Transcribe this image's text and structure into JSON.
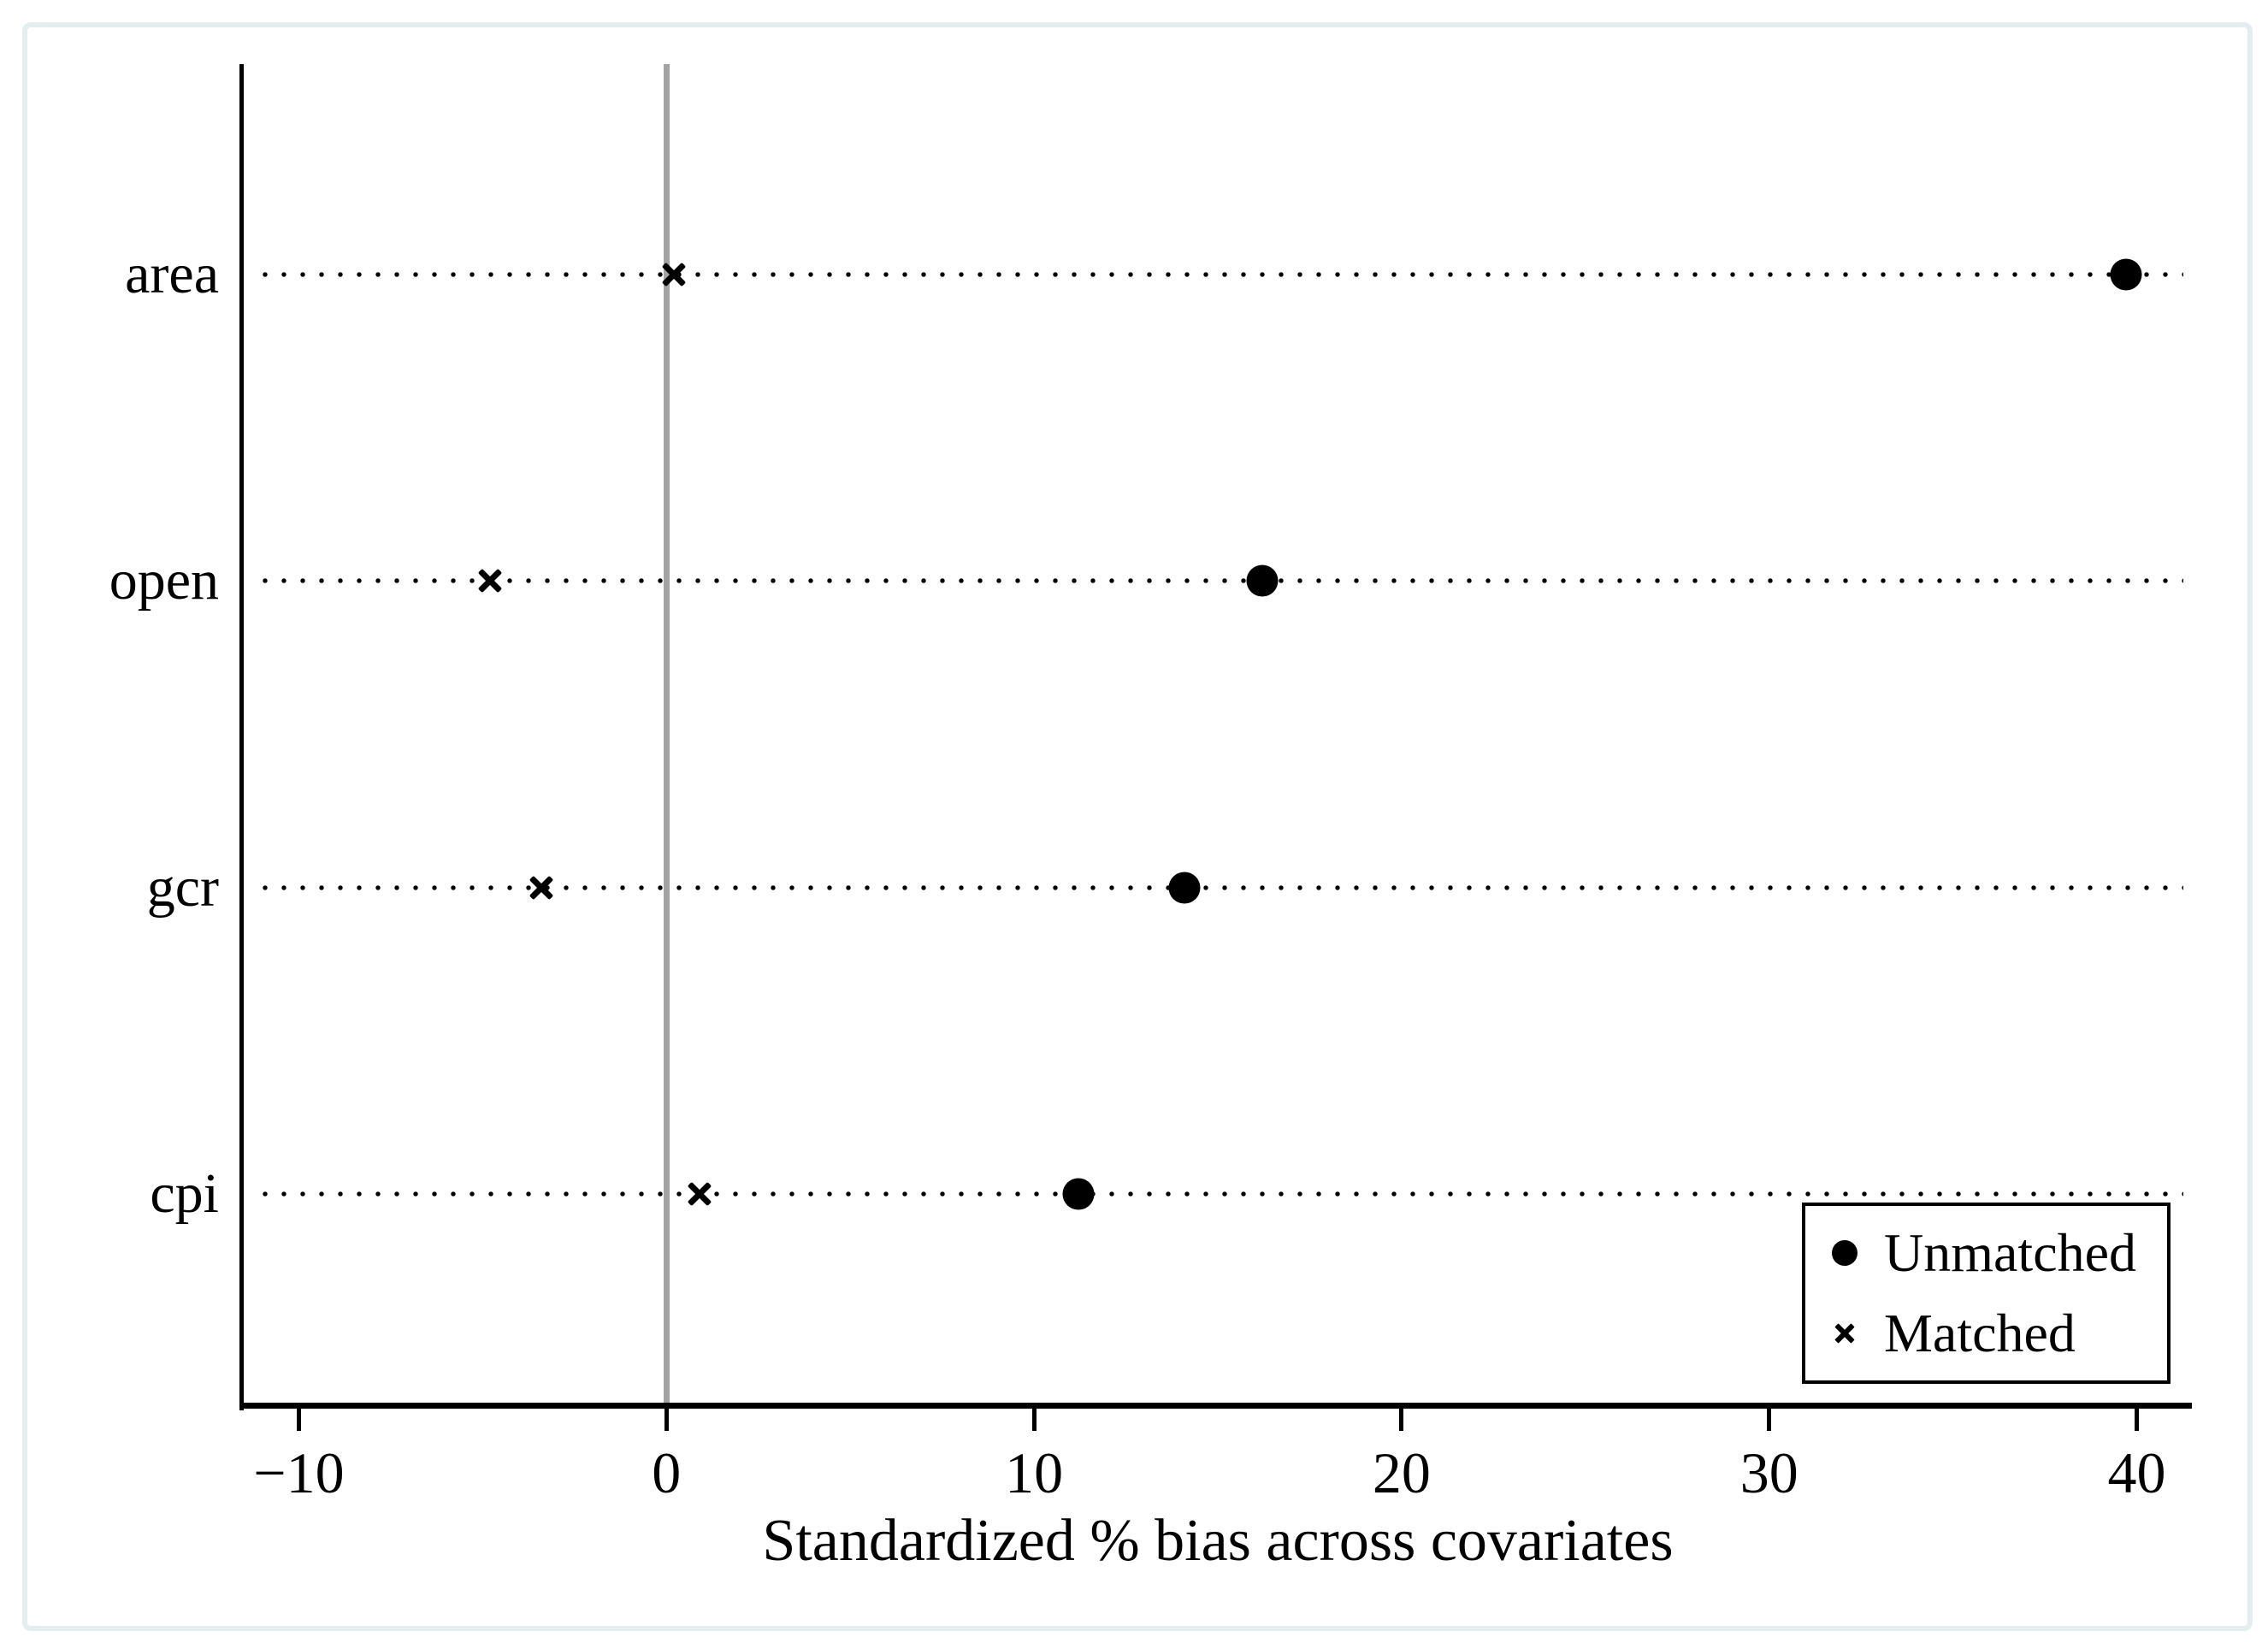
{
  "figure": {
    "background_color": "#ffffff",
    "frame_border_color": "#e4eef1",
    "marker_color": "#000000",
    "zero_line_color": "#a3a3a3"
  },
  "chart_data": {
    "type": "scatter",
    "title": "",
    "xlabel": "Standardized % bias across covariates",
    "ylabel": "",
    "categories": [
      "area",
      "open",
      "gcr",
      "cpi"
    ],
    "series": [
      {
        "name": "Unmatched",
        "marker": "circle",
        "values": [
          39.7,
          16.2,
          14.1,
          11.2
        ]
      },
      {
        "name": "Matched",
        "marker": "x",
        "values": [
          0.2,
          -4.8,
          -3.4,
          0.9
        ]
      }
    ],
    "x_ticks": [
      -10,
      0,
      10,
      20,
      30,
      40
    ],
    "x_tick_labels": [
      "−10",
      "0",
      "10",
      "20",
      "30",
      "40"
    ],
    "xlim": [
      -11.5,
      41.5
    ],
    "zero_reference_line": 0,
    "grid": "horizontal dotted line per category",
    "legend_position": "bottom-right"
  }
}
